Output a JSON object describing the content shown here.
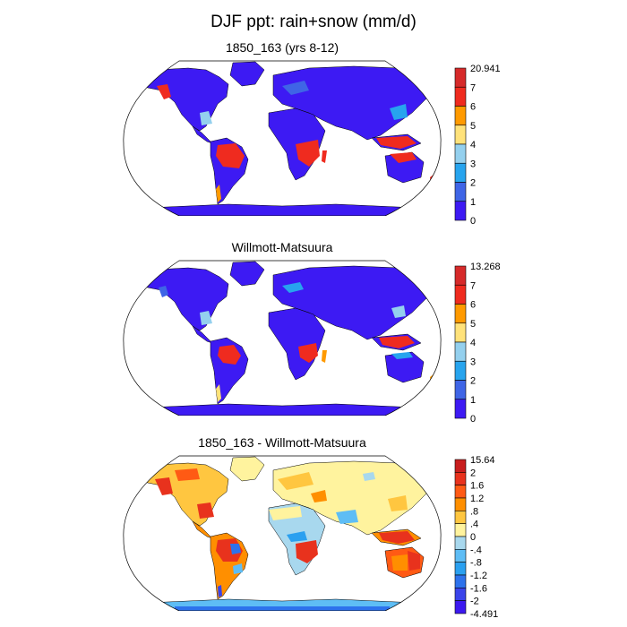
{
  "title": "DJF ppt: rain+snow (mm/d)",
  "panels": [
    {
      "id": "model",
      "title": "1850_163 (yrs 8-12)",
      "colorbar": {
        "labels": [
          "20.941",
          "7",
          "6",
          "5",
          "4",
          "3",
          "2",
          "1",
          "0"
        ],
        "colors": [
          "#d62a2a",
          "#ef2b1f",
          "#ff9a00",
          "#ffe27a",
          "#94d0ee",
          "#27a4ee",
          "#3f65e6",
          "#3d1af3"
        ]
      }
    },
    {
      "id": "obs",
      "title": "Willmott-Matsuura",
      "colorbar": {
        "labels": [
          "13.268",
          "7",
          "6",
          "5",
          "4",
          "3",
          "2",
          "1",
          "0"
        ],
        "colors": [
          "#d62a2a",
          "#ef2b1f",
          "#ff9a00",
          "#ffe27a",
          "#94d0ee",
          "#27a4ee",
          "#3f65e6",
          "#3d1af3"
        ]
      }
    },
    {
      "id": "diff",
      "title": "1850_163 - Willmott-Matsuura",
      "colorbar": {
        "labels": [
          "15.64",
          "2",
          "1.6",
          "1.2",
          ".8",
          ".4",
          "0",
          "-.4",
          "-.8",
          "-1.2",
          "-1.6",
          "-2",
          "-4.491"
        ],
        "colors": [
          "#c81e1e",
          "#e8321d",
          "#ff5a14",
          "#ff8f00",
          "#ffc640",
          "#fff39e",
          "#a8d8ee",
          "#5ebdf5",
          "#2aa0f0",
          "#2d72ec",
          "#3a44ea",
          "#3c19f0"
        ]
      }
    }
  ]
}
